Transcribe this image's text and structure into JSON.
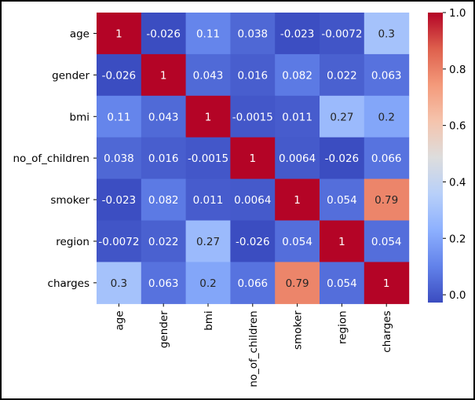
{
  "chart_data": {
    "type": "heatmap",
    "title": "",
    "xlabel": "",
    "ylabel": "",
    "row_labels": [
      "age",
      "gender",
      "bmi",
      "no_of_children",
      "smoker",
      "region",
      "charges"
    ],
    "col_labels": [
      "age",
      "gender",
      "bmi",
      "no_of_children",
      "smoker",
      "region",
      "charges"
    ],
    "values": [
      [
        1,
        -0.026,
        0.11,
        0.038,
        -0.023,
        -0.0072,
        0.3
      ],
      [
        -0.026,
        1,
        0.043,
        0.016,
        0.082,
        0.022,
        0.063
      ],
      [
        0.11,
        0.043,
        1,
        -0.0015,
        0.011,
        0.27,
        0.2
      ],
      [
        0.038,
        0.016,
        -0.0015,
        1,
        0.0064,
        -0.026,
        0.066
      ],
      [
        -0.023,
        0.082,
        0.011,
        0.0064,
        1,
        0.054,
        0.79
      ],
      [
        -0.0072,
        0.022,
        0.27,
        -0.026,
        0.054,
        1,
        0.054
      ],
      [
        0.3,
        0.063,
        0.2,
        0.066,
        0.79,
        0.054,
        1
      ]
    ],
    "annotations": [
      [
        "1",
        "-0.026",
        "0.11",
        "0.038",
        "-0.023",
        "-0.0072",
        "0.3"
      ],
      [
        "-0.026",
        "1",
        "0.043",
        "0.016",
        "0.082",
        "0.022",
        "0.063"
      ],
      [
        "0.11",
        "0.043",
        "1",
        "-0.0015",
        "0.011",
        "0.27",
        "0.2"
      ],
      [
        "0.038",
        "0.016",
        "-0.0015",
        "1",
        "0.0064",
        "-0.026",
        "0.066"
      ],
      [
        "-0.023",
        "0.082",
        "0.011",
        "0.0064",
        "1",
        "0.054",
        "0.79"
      ],
      [
        "-0.0072",
        "0.022",
        "0.27",
        "-0.026",
        "0.054",
        "1",
        "0.054"
      ],
      [
        "0.3",
        "0.063",
        "0.2",
        "0.066",
        "0.79",
        "0.054",
        "1"
      ]
    ],
    "colormap": "coolwarm",
    "colorbar": {
      "vmin": -0.0276,
      "vmax": 1.0,
      "ticks": [
        0.0,
        0.2,
        0.4,
        0.6,
        0.8,
        1.0
      ],
      "tick_labels": [
        "0.0",
        "0.2",
        "0.4",
        "0.6",
        "0.8",
        "1.0"
      ],
      "placement": "right"
    }
  }
}
